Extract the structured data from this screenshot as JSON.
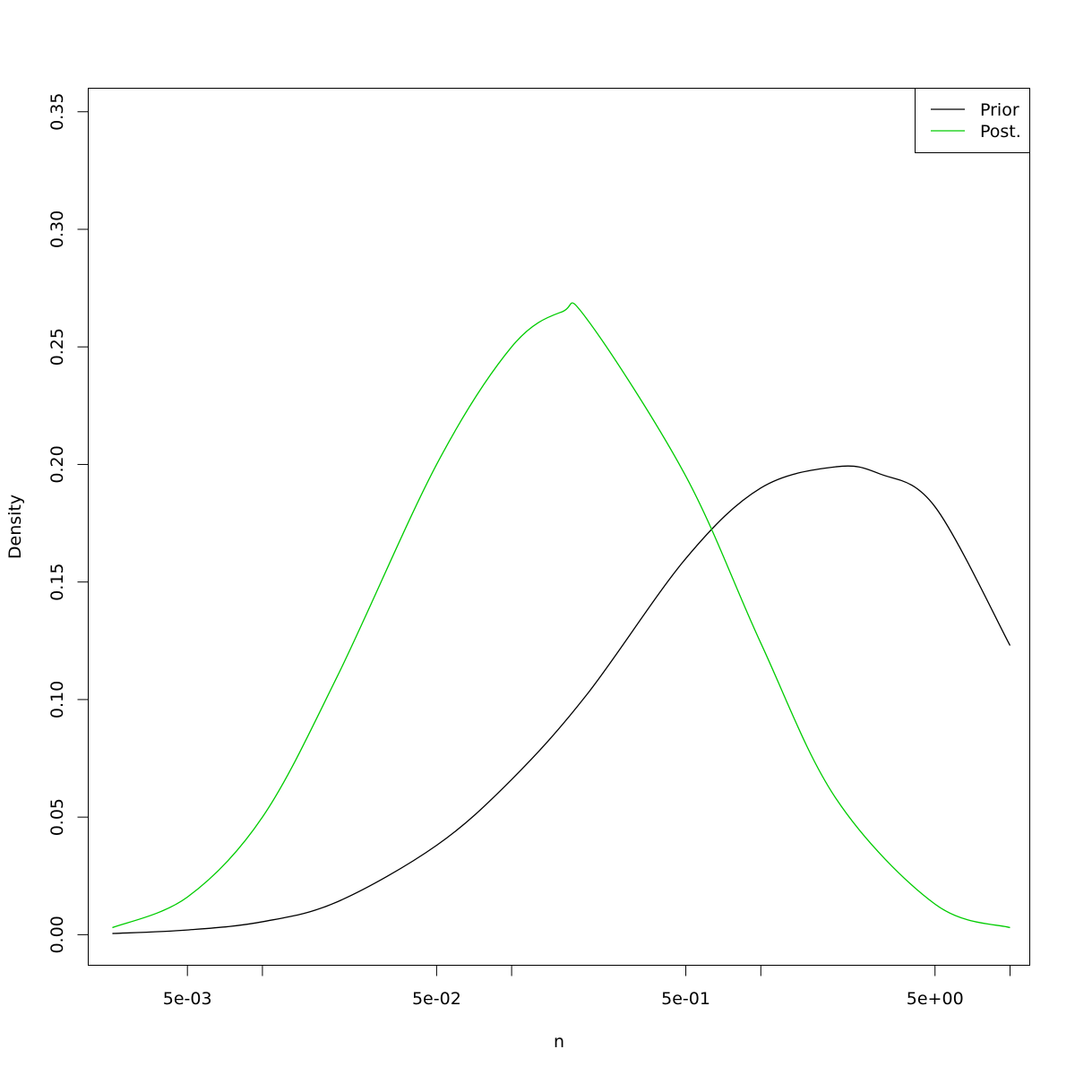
{
  "chart_data": {
    "type": "line",
    "title": "",
    "xlabel": "n",
    "ylabel": "Density",
    "x_scale": "log",
    "xlim": [
      0.002,
      12
    ],
    "ylim": [
      -0.013,
      0.36
    ],
    "x_ticks": [
      {
        "value": 0.005,
        "label": "5e-03"
      },
      {
        "value": 0.01,
        "label": ""
      },
      {
        "value": 0.05,
        "label": "5e-02"
      },
      {
        "value": 0.1,
        "label": ""
      },
      {
        "value": 0.5,
        "label": "5e-01"
      },
      {
        "value": 1,
        "label": ""
      },
      {
        "value": 5,
        "label": "5e+00"
      },
      {
        "value": 10,
        "label": ""
      }
    ],
    "y_ticks": [
      {
        "value": 0.0,
        "label": "0.00"
      },
      {
        "value": 0.05,
        "label": "0.05"
      },
      {
        "value": 0.1,
        "label": "0.10"
      },
      {
        "value": 0.15,
        "label": "0.15"
      },
      {
        "value": 0.2,
        "label": "0.20"
      },
      {
        "value": 0.25,
        "label": "0.25"
      },
      {
        "value": 0.3,
        "label": "0.30"
      },
      {
        "value": 0.35,
        "label": "0.35"
      }
    ],
    "grid": false,
    "legend_position": "top-right",
    "series": [
      {
        "name": "Prior",
        "color": "#000000",
        "x": [
          0.0025,
          0.005,
          0.01,
          0.02,
          0.05,
          0.1,
          0.2,
          0.5,
          1,
          2,
          3,
          5,
          10
        ],
        "y": [
          0.0005,
          0.002,
          0.0055,
          0.014,
          0.038,
          0.066,
          0.102,
          0.16,
          0.19,
          0.199,
          0.196,
          0.182,
          0.123
        ]
      },
      {
        "name": "Post.",
        "color": "#00CC00",
        "x": [
          0.0025,
          0.005,
          0.01,
          0.02,
          0.05,
          0.1,
          0.16,
          0.2,
          0.5,
          1,
          2,
          5,
          10
        ],
        "y": [
          0.003,
          0.016,
          0.05,
          0.11,
          0.2,
          0.25,
          0.265,
          0.262,
          0.195,
          0.124,
          0.058,
          0.013,
          0.003
        ]
      }
    ]
  }
}
